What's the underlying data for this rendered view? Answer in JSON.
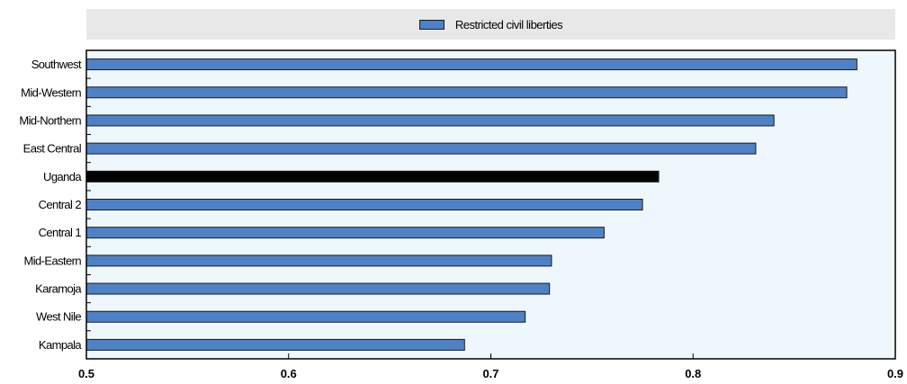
{
  "chart_data": {
    "type": "bar",
    "orientation": "horizontal",
    "title": "",
    "xlabel": "",
    "ylabel": "",
    "legend": {
      "placement": "top",
      "entries": [
        "Restricted civil liberties"
      ]
    },
    "series": [
      {
        "name": "Restricted civil liberties",
        "color": "#4f81c7",
        "highlight_color": "#000000",
        "highlight_category": "Uganda"
      }
    ],
    "categories": [
      "Southwest",
      "Mid-Western",
      "Mid-Northern",
      "East Central",
      "Uganda",
      "Central 2",
      "Central 1",
      "Mid-Eastern",
      "Karamoja",
      "West Nile",
      "Kampala"
    ],
    "values": [
      0.881,
      0.876,
      0.84,
      0.831,
      0.783,
      0.775,
      0.756,
      0.73,
      0.729,
      0.717,
      0.687
    ],
    "xlim": [
      0.5,
      0.9
    ],
    "xticks": [
      0.5,
      0.6,
      0.7,
      0.8,
      0.9
    ],
    "xtick_labels": [
      "0.5",
      "0.6",
      "0.7",
      "0.8",
      "0.9"
    ],
    "grid": false,
    "plot_background": "#eef8fc"
  }
}
